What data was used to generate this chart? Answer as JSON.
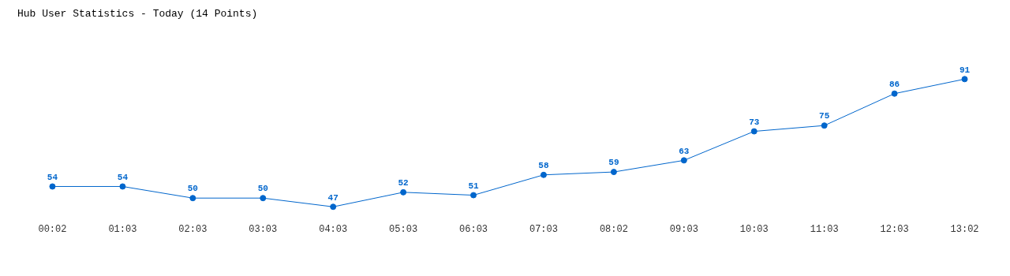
{
  "chart_data": {
    "type": "line",
    "title": "Hub User Statistics - Today (14 Points)",
    "categories": [
      "00:02",
      "01:03",
      "02:03",
      "03:03",
      "04:03",
      "05:03",
      "06:03",
      "07:03",
      "08:02",
      "09:03",
      "10:03",
      "11:03",
      "12:03",
      "13:02"
    ],
    "series": [
      {
        "color": "#0066cc",
        "values": [
          54,
          54,
          50,
          50,
          47,
          52,
          51,
          58,
          59,
          63,
          73,
          75,
          86,
          91
        ]
      }
    ],
    "data_labels": true,
    "grid": false,
    "legend": false,
    "marker": "circle",
    "line_style": "solid",
    "tick_labels": "x"
  }
}
